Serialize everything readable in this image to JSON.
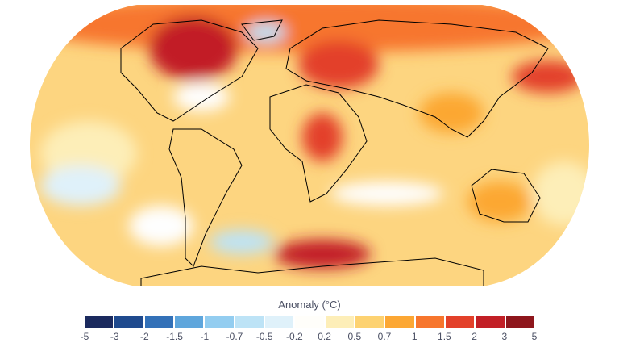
{
  "legend": {
    "title": "Anomaly (°C)",
    "ticks": [
      "-5",
      "-3",
      "-2",
      "-1.5",
      "-1",
      "-0.7",
      "-0.5",
      "-0.2",
      "0.2",
      "0.5",
      "0.7",
      "1",
      "1.5",
      "2",
      "3",
      "5"
    ],
    "colors": [
      "#1b2a5e",
      "#1f4a8e",
      "#3371b8",
      "#5fa6dc",
      "#93cdf0",
      "#bde3f6",
      "#dff1fa",
      "#fefefe",
      "#fdeeb8",
      "#fdd271",
      "#fca733",
      "#f7762d",
      "#e3412a",
      "#c21f26",
      "#8e161c"
    ]
  },
  "map": {
    "projection": "robinson",
    "variable": "temperature anomaly"
  }
}
